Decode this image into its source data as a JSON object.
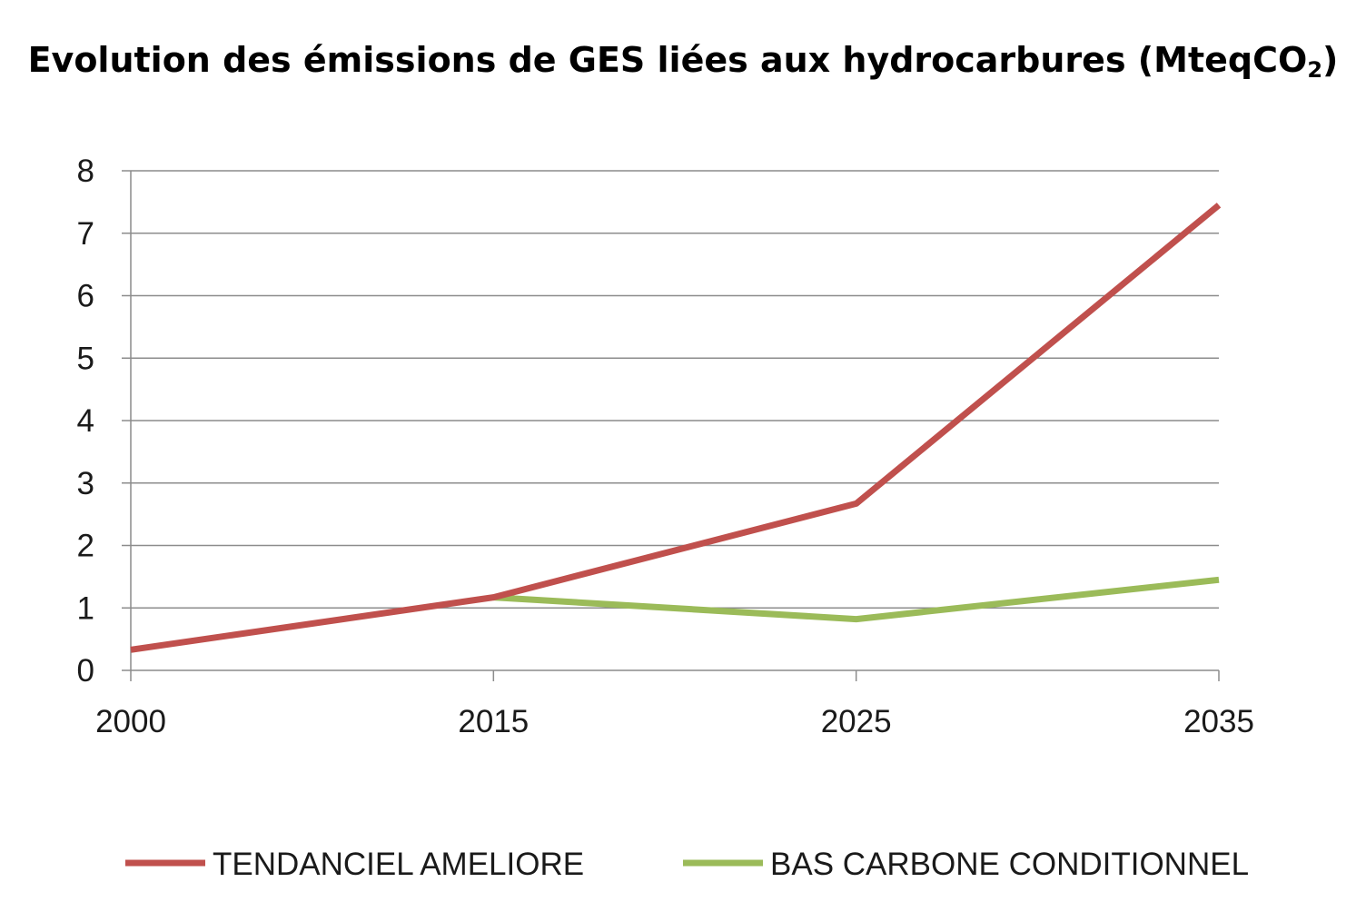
{
  "chart_data": {
    "type": "line",
    "title": "Evolution des émissions de GES liées aux hydrocarbures (MteqCO",
    "title_subscript": "2",
    "title_suffix": ")",
    "categories": [
      "2000",
      "2015",
      "2025",
      "2035"
    ],
    "y_ticks": [
      "0",
      "1",
      "2",
      "3",
      "4",
      "5",
      "6",
      "7",
      "8"
    ],
    "ylim": [
      0,
      8
    ],
    "grid": true,
    "legend_position": "bottom",
    "series": [
      {
        "name": "TENDANCIEL AMELIORE",
        "color": "#c0504d",
        "values": [
          0.33,
          1.17,
          2.67,
          7.45
        ]
      },
      {
        "name": "BAS CARBONE CONDITIONNEL",
        "color": "#9bbb59",
        "values": [
          null,
          1.17,
          0.82,
          1.45
        ]
      }
    ]
  }
}
